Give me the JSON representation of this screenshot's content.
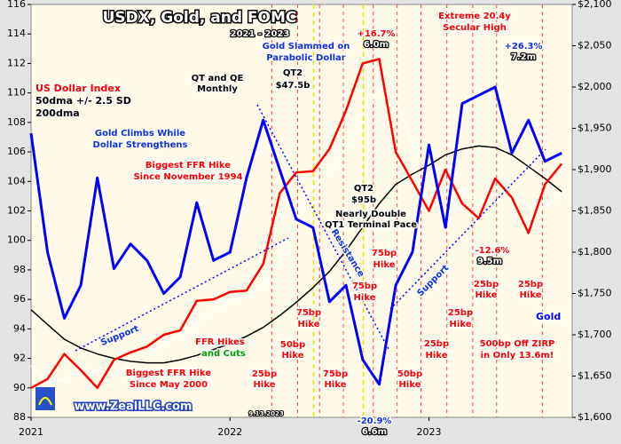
{
  "chart_data": {
    "type": "line",
    "title": "USDX, Gold, and FOMC",
    "x": [
      2021.0,
      2021.083,
      2021.167,
      2021.25,
      2021.333,
      2021.417,
      2021.5,
      2021.583,
      2021.667,
      2021.75,
      2021.833,
      2021.917,
      2022.0,
      2022.083,
      2022.167,
      2022.25,
      2022.333,
      2022.417,
      2022.5,
      2022.583,
      2022.667,
      2022.75,
      2022.833,
      2022.917,
      2023.0,
      2023.083,
      2023.167,
      2023.25,
      2023.333,
      2023.417,
      2023.5,
      2023.583,
      2023.667
    ],
    "xlim": [
      2021.0,
      2023.72
    ],
    "xticks": [
      2021,
      2022,
      2023
    ],
    "ylim": [
      88,
      116
    ],
    "yticks": [
      88,
      90,
      92,
      94,
      96,
      98,
      100,
      102,
      104,
      106,
      108,
      110,
      112,
      114,
      116
    ],
    "y2lim": [
      1600,
      2100
    ],
    "y2ticks": [
      {
        "value": 1600,
        "label": "$1,600"
      },
      {
        "value": 1650,
        "label": "$1,650"
      },
      {
        "value": 1700,
        "label": "$1,700"
      },
      {
        "value": 1750,
        "label": "$1,750"
      },
      {
        "value": 1800,
        "label": "$1,800"
      },
      {
        "value": 1850,
        "label": "$1,850"
      },
      {
        "value": 1900,
        "label": "$1,900"
      },
      {
        "value": 1950,
        "label": "$1,950"
      },
      {
        "value": 2000,
        "label": "$2,000"
      },
      {
        "value": 2050,
        "label": "$2,050"
      },
      {
        "value": 2100,
        "label": "$2,100"
      }
    ],
    "grid": false,
    "series": [
      {
        "name": "US Dollar Index",
        "color": "#ff0000",
        "values": [
          90.0,
          90.6,
          92.3,
          91.2,
          90.0,
          91.9,
          92.4,
          92.8,
          93.6,
          93.9,
          95.9,
          96.0,
          96.5,
          96.6,
          98.4,
          103.2,
          104.6,
          104.7,
          106.2,
          108.8,
          112.0,
          112.3,
          106.0,
          104.0,
          102.0,
          104.8,
          102.5,
          101.5,
          104.2,
          102.9,
          100.5,
          103.8,
          105.2
        ]
      },
      {
        "name": "50dma  +/- 2.5 SD",
        "color": "#ffffff",
        "values": [
          91.5,
          90.4,
          90.6,
          91.3,
          91.2,
          90.8,
          91.6,
          92.4,
          92.9,
          93.6,
          94.3,
          95.3,
          95.9,
          96.2,
          96.9,
          98.6,
          101.2,
          103.5,
          104.6,
          106.3,
          108.5,
          110.3,
          109.5,
          106.7,
          104.0,
          103.2,
          103.4,
          102.6,
          102.7,
          103.0,
          102.4,
          102.3,
          103.2
        ]
      },
      {
        "name": "200dma",
        "color": "#000000",
        "values": [
          95.3,
          94.3,
          93.3,
          92.7,
          92.3,
          92.0,
          91.8,
          91.7,
          91.7,
          91.9,
          92.2,
          92.6,
          93.0,
          93.5,
          94.1,
          94.9,
          95.8,
          96.8,
          97.9,
          99.3,
          100.9,
          102.5,
          103.8,
          104.5,
          105.1,
          105.8,
          106.2,
          106.4,
          106.3,
          105.8,
          105.0,
          104.2,
          103.3
        ]
      },
      {
        "name": "Gold",
        "color": "#0000ff",
        "axis": "y2",
        "values": [
          1944,
          1800,
          1720,
          1760,
          1890,
          1780,
          1810,
          1790,
          1750,
          1770,
          1860,
          1790,
          1800,
          1890,
          1960,
          1900,
          1840,
          1830,
          1740,
          1760,
          1670,
          1640,
          1760,
          1800,
          1930,
          1830,
          1980,
          1990,
          2000,
          1920,
          1960,
          1910,
          1920
        ]
      }
    ],
    "fomc_dates": [
      2022.21,
      2022.34,
      2022.45,
      2022.57,
      2022.72,
      2022.84,
      2022.96,
      2023.09,
      2023.22,
      2023.34,
      2023.57
    ],
    "qt_dates": [
      2022.42,
      2022.67
    ],
    "annotations": [
      "2021 - 2023",
      "Gold Slammed on",
      "Parabolic Dollar",
      "+16.7%",
      "6.0m",
      "Extreme 20.4y",
      "Secular High",
      "+26.3%",
      "7.2m",
      "QT and QE",
      "Monthly",
      "QT2",
      "$47.5b",
      "Gold Climbs While",
      "Dollar Strengthens",
      "Biggest FFR Hike",
      "Since November 1994",
      "QT2",
      "$95b",
      "Nearly Double",
      "QT1 Terminal Pace",
      "Resistance",
      "Support",
      "Support",
      "-12.6%",
      "9.5m",
      "75bp",
      "Hike",
      "50bp",
      "Hike",
      "25bp",
      "Hike",
      "75bp",
      "Hike",
      "75bp",
      "Hike",
      "75bp",
      "Hike",
      "50bp",
      "Hike",
      "25bp",
      "Hike",
      "25bp",
      "Hike",
      "25bp",
      "Hike",
      "25bp",
      "Hike",
      "FFR Hikes",
      "and Cuts",
      "Biggest FFR Hike",
      "Since May 2000",
      "500bp Off ZIRP",
      "in Only 13.6m!",
      "-20.9%",
      "6.6m",
      "9.13.2023"
    ],
    "watermark": "www.ZealLLC.com"
  }
}
